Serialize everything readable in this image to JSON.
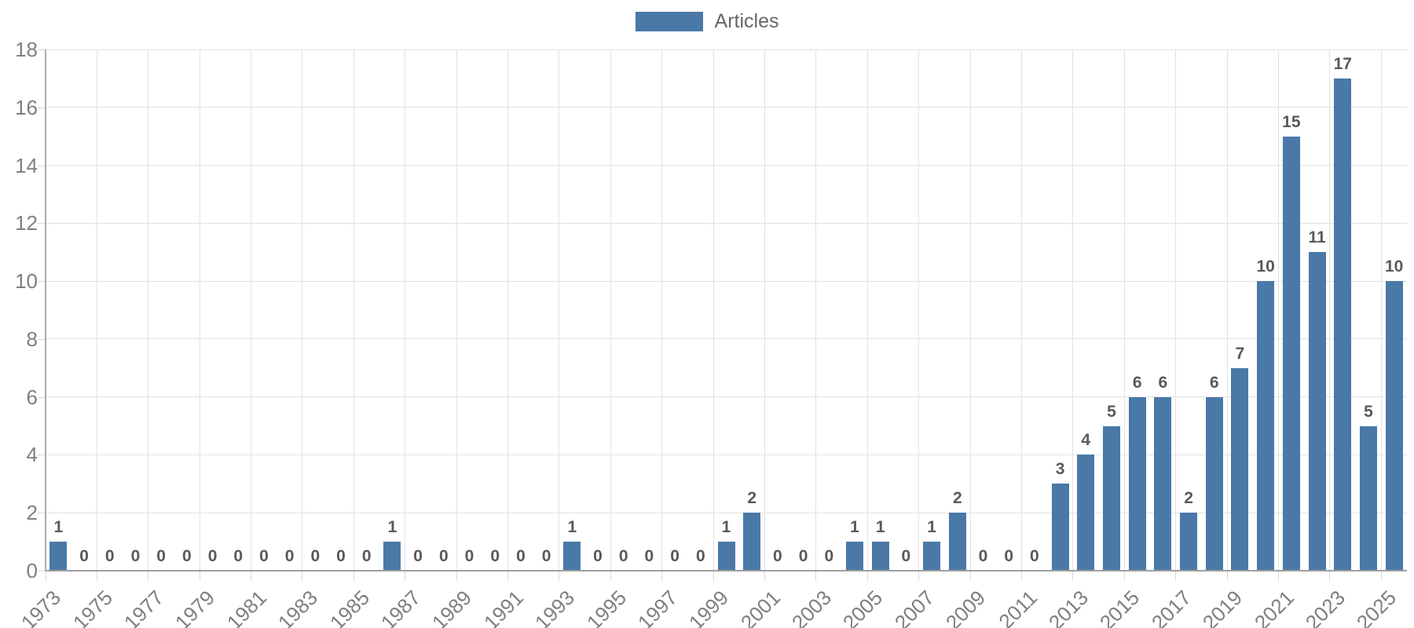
{
  "legend": {
    "label": "Articles"
  },
  "colors": {
    "bar": "#4a79a7",
    "gridline": "#e2e2e2",
    "baseline": "#9e9e9e",
    "y_axis_line": "#aeaeae",
    "tick": "#d9d9d9",
    "axis_label": "#7f7f7f",
    "value_label": "#595959",
    "legend_text": "#666666"
  },
  "chart_data": {
    "type": "bar",
    "title": "",
    "xlabel": "",
    "ylabel": "",
    "legend_position": "top-center",
    "grid": true,
    "value_labels_shown": true,
    "ylim": [
      0,
      18
    ],
    "yticks": [
      0,
      2,
      4,
      6,
      8,
      10,
      12,
      14,
      16,
      18
    ],
    "xtick_label_every": 2,
    "xtick_labels_shown": [
      "1973",
      "1975",
      "1977",
      "1979",
      "1981",
      "1983",
      "1985",
      "1987",
      "1989",
      "1991",
      "1993",
      "1995",
      "1997",
      "1999",
      "2001",
      "2003",
      "2005",
      "2007",
      "2009",
      "2011",
      "2013",
      "2015",
      "2017",
      "2019",
      "2021",
      "2023",
      "2025"
    ],
    "categories": [
      "1973",
      "1974",
      "1975",
      "1976",
      "1977",
      "1978",
      "1979",
      "1980",
      "1981",
      "1982",
      "1983",
      "1984",
      "1985",
      "1986",
      "1987",
      "1988",
      "1989",
      "1990",
      "1991",
      "1992",
      "1993",
      "1994",
      "1995",
      "1996",
      "1997",
      "1998",
      "1999",
      "2000",
      "2001",
      "2002",
      "2003",
      "2004",
      "2005",
      "2006",
      "2007",
      "2008",
      "2009",
      "2010",
      "2011",
      "2012",
      "2013",
      "2014",
      "2015",
      "2016",
      "2017",
      "2018",
      "2019",
      "2020",
      "2021",
      "2022",
      "2023",
      "2024",
      "2025"
    ],
    "series": [
      {
        "name": "Articles",
        "values": [
          1,
          0,
          0,
          0,
          0,
          0,
          0,
          0,
          0,
          0,
          0,
          0,
          0,
          1,
          0,
          0,
          0,
          0,
          0,
          0,
          1,
          0,
          0,
          0,
          0,
          0,
          1,
          2,
          0,
          0,
          0,
          1,
          1,
          0,
          1,
          2,
          0,
          0,
          0,
          3,
          4,
          5,
          6,
          6,
          2,
          6,
          7,
          10,
          15,
          11,
          17,
          5,
          10
        ]
      }
    ]
  }
}
